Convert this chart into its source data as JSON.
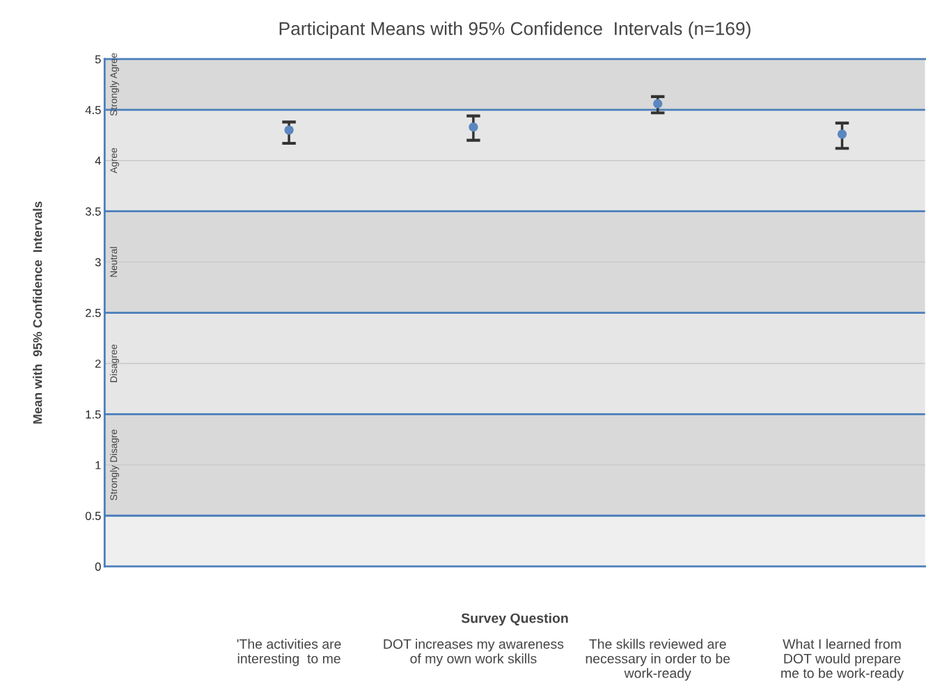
{
  "chart_data": {
    "type": "scatter",
    "title": "Participant Means with 95% Confidence  Intervals (n=169)",
    "xlabel": "Survey Question",
    "ylabel": "Mean with  95% Confidence  Intervals",
    "categories": [
      "'The activities are\ninteresting  to me",
      "DOT increases my awareness\nof my own work skills",
      "The skills reviewed are\nnecessary in order to be\nwork-ready",
      "What I learned from\nDOT would prepare\nme to be work-ready"
    ],
    "values": [
      4.3,
      4.33,
      4.56,
      4.26
    ],
    "errors": [
      [
        4.17,
        4.38
      ],
      [
        4.2,
        4.44
      ],
      [
        4.47,
        4.63
      ],
      [
        4.12,
        4.37
      ]
    ],
    "color": "#5b87c0",
    "marker": "circle",
    "ylim": [
      0,
      5
    ],
    "yticks": [
      0,
      0.5,
      1,
      1.5,
      2,
      2.5,
      3,
      3.5,
      4,
      4.5,
      5
    ],
    "grid": "y",
    "legend": false,
    "bands": [
      {
        "axis": "y",
        "from": 4.5,
        "to": 5,
        "label": "Strongly Agree",
        "color": "#d9d9d9"
      },
      {
        "axis": "y",
        "from": 3.5,
        "to": 4.5,
        "label": "Agree",
        "color": "#e6e6e6"
      },
      {
        "axis": "y",
        "from": 2.5,
        "to": 3.5,
        "label": "Neutral",
        "color": "#d9d9d9"
      },
      {
        "axis": "y",
        "from": 1.5,
        "to": 2.5,
        "label": "Disagree",
        "color": "#e6e6e6"
      },
      {
        "axis": "y",
        "from": 0.5,
        "to": 1.5,
        "label": "Strongly Disagre",
        "color": "#d9d9d9"
      }
    ]
  }
}
